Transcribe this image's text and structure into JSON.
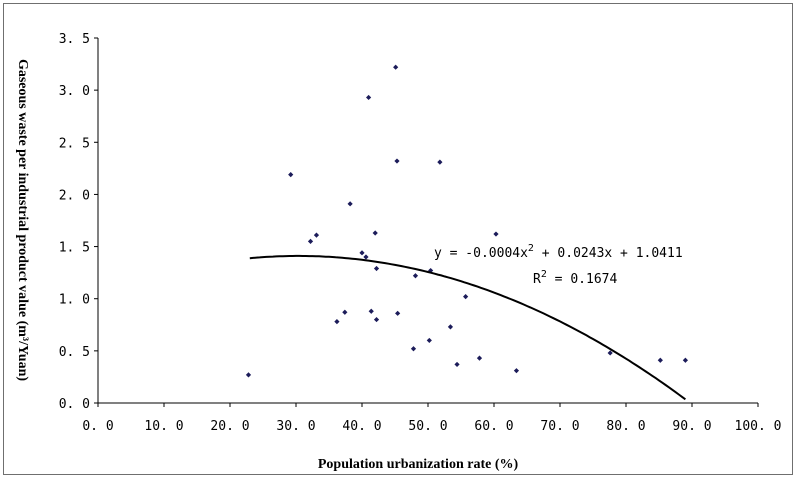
{
  "chart_data": {
    "type": "scatter",
    "title": "",
    "xlabel": "Population urbanization rate (%)",
    "ylabel": "Gaseous waste per industrial product value (m³/Yuan)",
    "xlim": [
      0,
      100
    ],
    "ylim": [
      0,
      3.5
    ],
    "x_ticks": [
      "0. 0",
      "10. 0",
      "20. 0",
      "30. 0",
      "40. 0",
      "50. 0",
      "60. 0",
      "70. 0",
      "80. 0",
      "90. 0",
      "100. 0"
    ],
    "y_ticks": [
      "0. 0",
      "0. 5",
      "1. 0",
      "1. 5",
      "2. 0",
      "2. 5",
      "3. 0",
      "3. 5"
    ],
    "grid": false,
    "points": [
      {
        "x": 22.8,
        "y": 0.27
      },
      {
        "x": 29.2,
        "y": 2.19
      },
      {
        "x": 32.2,
        "y": 1.55
      },
      {
        "x": 33.1,
        "y": 1.61
      },
      {
        "x": 36.2,
        "y": 0.78
      },
      {
        "x": 37.4,
        "y": 0.87
      },
      {
        "x": 38.2,
        "y": 1.91
      },
      {
        "x": 40.0,
        "y": 1.44
      },
      {
        "x": 40.6,
        "y": 1.4
      },
      {
        "x": 41.0,
        "y": 2.93
      },
      {
        "x": 41.4,
        "y": 0.88
      },
      {
        "x": 42.0,
        "y": 1.63
      },
      {
        "x": 42.2,
        "y": 1.29
      },
      {
        "x": 42.2,
        "y": 0.8
      },
      {
        "x": 45.1,
        "y": 3.22
      },
      {
        "x": 45.3,
        "y": 2.32
      },
      {
        "x": 45.4,
        "y": 0.86
      },
      {
        "x": 47.8,
        "y": 0.52
      },
      {
        "x": 48.1,
        "y": 1.22
      },
      {
        "x": 50.2,
        "y": 0.6
      },
      {
        "x": 50.4,
        "y": 1.27
      },
      {
        "x": 51.8,
        "y": 2.31
      },
      {
        "x": 53.4,
        "y": 0.73
      },
      {
        "x": 54.4,
        "y": 0.37
      },
      {
        "x": 55.7,
        "y": 1.02
      },
      {
        "x": 57.8,
        "y": 0.43
      },
      {
        "x": 60.3,
        "y": 1.62
      },
      {
        "x": 63.4,
        "y": 0.31
      },
      {
        "x": 77.6,
        "y": 0.48
      },
      {
        "x": 85.2,
        "y": 0.41
      },
      {
        "x": 89.0,
        "y": 0.41
      }
    ],
    "trendline": {
      "type": "polynomial",
      "coefficients": [
        -0.0004,
        0.0243,
        1.0411
      ],
      "x_range": [
        23,
        89
      ],
      "equation_prefix": "y = -0.0004x",
      "equation_mid": "2",
      "equation_suffix": " + 0.0243x + 1.0411",
      "r2_prefix": "R",
      "r2_sup": "2",
      "r2_suffix": " = 0.1674"
    },
    "marker_color": "#1c1c5a",
    "line_color": "#000000"
  }
}
